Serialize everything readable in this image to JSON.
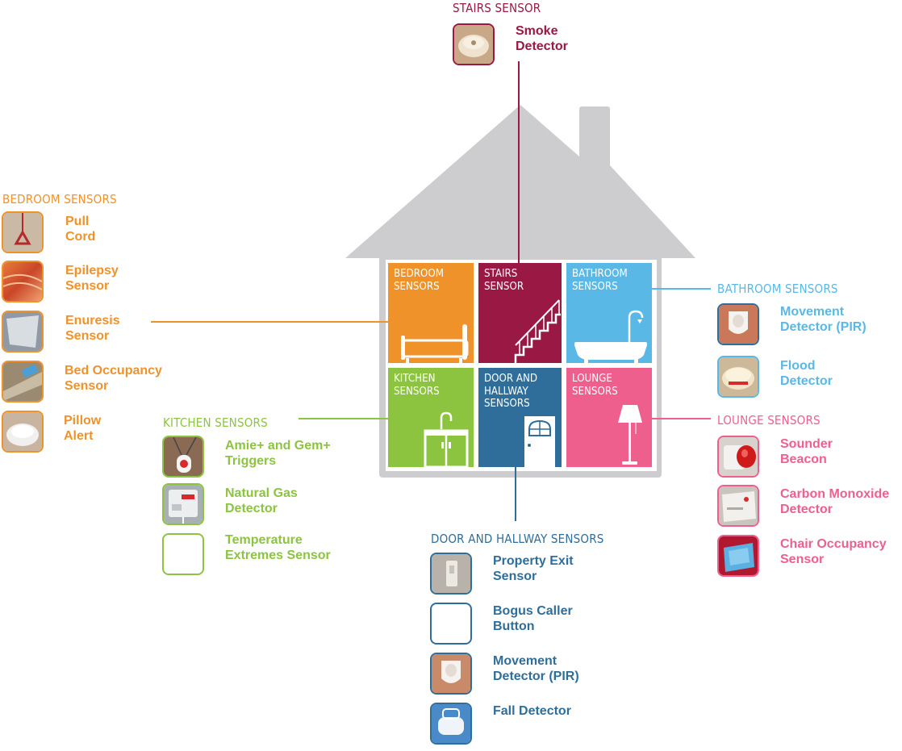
{
  "colors": {
    "bedroom": "#f0922a",
    "stairs": "#9a1844",
    "bathroom": "#5ab8e6",
    "kitchen": "#8cc43f",
    "door": "#2f6e9a",
    "lounge": "#ef5f8e",
    "house": "#cdcdcf"
  },
  "rooms": {
    "bedroom": "BEDROOM\nSENSORS",
    "stairs": "STAIRS\nSENSOR",
    "bathroom": "BATHROOM\nSENSORS",
    "kitchen": "KITCHEN\nSENSORS",
    "door": "DOOR AND\nHALLWAY\nSENSORS",
    "lounge": "LOUNGE\nSENSORS"
  },
  "groups": {
    "stairs": {
      "title": "STAIRS SENSOR",
      "items": [
        {
          "label": "Smoke\nDetector",
          "icon": "smoke-detector"
        }
      ]
    },
    "bedroom": {
      "title": "BEDROOM SENSORS",
      "items": [
        {
          "label": "Pull\nCord",
          "icon": "pull-cord"
        },
        {
          "label": "Epilepsy\nSensor",
          "icon": "epilepsy-sensor"
        },
        {
          "label": "Enuresis\nSensor",
          "icon": "enuresis-sensor"
        },
        {
          "label": "Bed Occupancy\nSensor",
          "icon": "bed-occupancy-sensor"
        },
        {
          "label": "Pillow\nAlert",
          "icon": "pillow-alert"
        }
      ]
    },
    "kitchen": {
      "title": "KITCHEN SENSORS",
      "items": [
        {
          "label": "Amie+ and Gem+\nTriggers",
          "icon": "pendant-trigger"
        },
        {
          "label": "Natural Gas\nDetector",
          "icon": "gas-detector"
        },
        {
          "label": "Temperature\nExtremes Sensor",
          "icon": "temperature-sensor"
        }
      ]
    },
    "door": {
      "title": "DOOR AND HALLWAY SENSORS",
      "items": [
        {
          "label": "Property Exit\nSensor",
          "icon": "property-exit-sensor"
        },
        {
          "label": "Bogus Caller\nButton",
          "icon": "bogus-caller-button"
        },
        {
          "label": "Movement\nDetector (PIR)",
          "icon": "pir-detector"
        },
        {
          "label": "Fall Detector",
          "icon": "fall-detector"
        }
      ]
    },
    "bathroom": {
      "title": "BATHROOM SENSORS",
      "items": [
        {
          "label": "Movement\nDetector (PIR)",
          "icon": "pir-detector"
        },
        {
          "label": "Flood\nDetector",
          "icon": "flood-detector"
        }
      ]
    },
    "lounge": {
      "title": "LOUNGE SENSORS",
      "items": [
        {
          "label": "Sounder\nBeacon",
          "icon": "sounder-beacon"
        },
        {
          "label": "Carbon Monoxide\nDetector",
          "icon": "co-detector"
        },
        {
          "label": "Chair Occupancy\nSensor",
          "icon": "chair-occupancy-sensor"
        }
      ]
    }
  }
}
